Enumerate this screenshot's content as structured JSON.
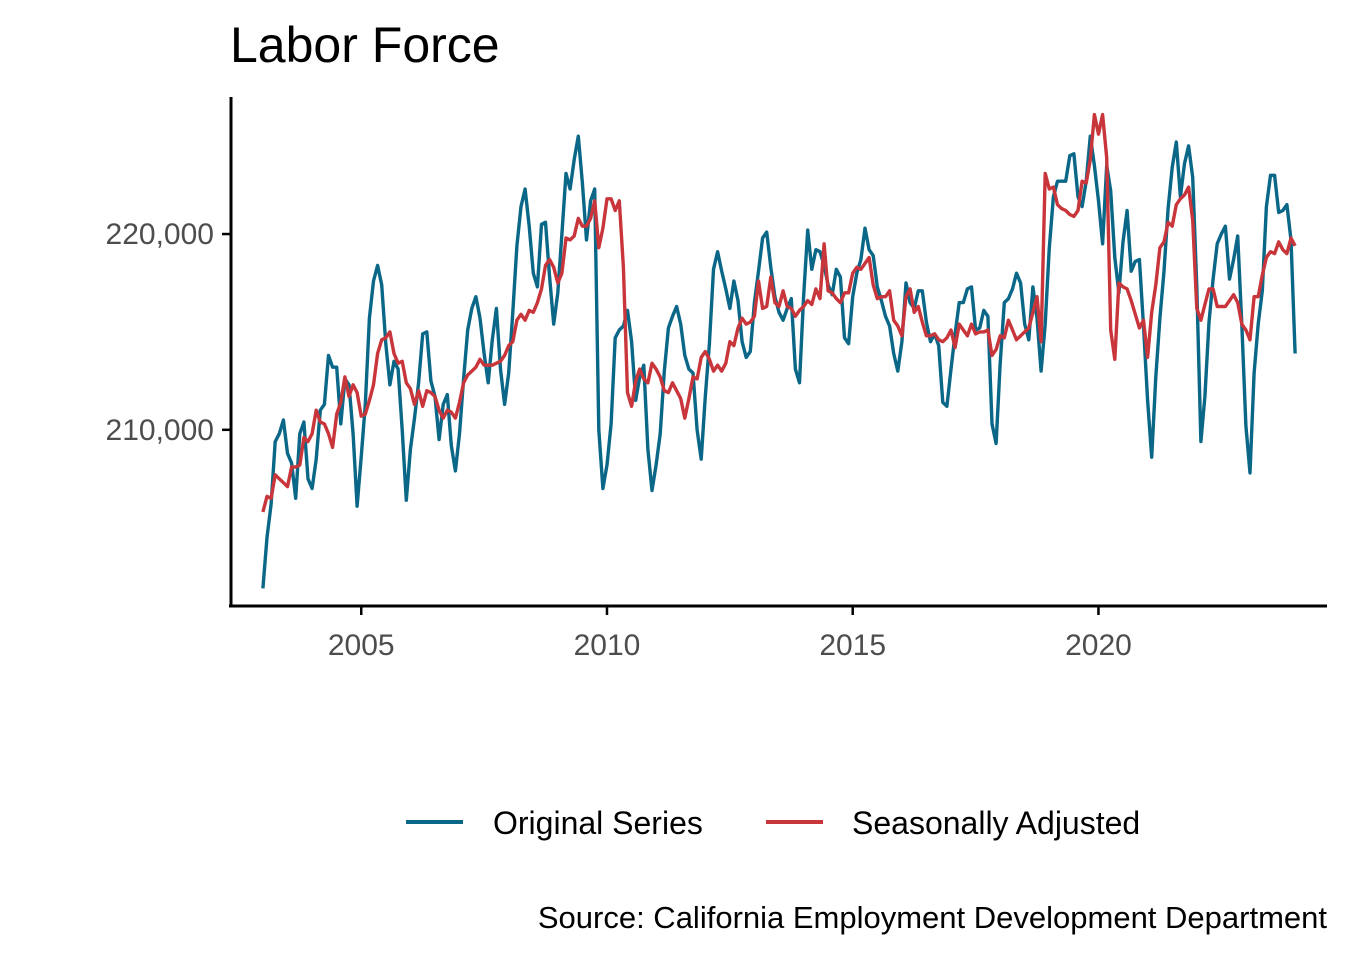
{
  "chart_data": {
    "type": "line",
    "title": "Labor Force",
    "xlabel": "",
    "ylabel": "",
    "caption": "Source: California Employment Development Department",
    "x_range": [
      2003.0,
      2024.0
    ],
    "xlim": [
      2002.35,
      2024.65
    ],
    "ylim": [
      201000,
      227000
    ],
    "x_ticks": [
      2005,
      2010,
      2015,
      2020
    ],
    "x_tick_labels": [
      "2005",
      "2010",
      "2015",
      "2020"
    ],
    "y_ticks": [
      210000,
      220000
    ],
    "y_tick_labels": [
      "210,000",
      "220,000"
    ],
    "grid": false,
    "legend_position": "bottom",
    "series": [
      {
        "name": "Original Series",
        "color": "#0a6787",
        "values": [
          201900,
          204500,
          206200,
          209400,
          209800,
          210500,
          208800,
          208300,
          206500,
          209800,
          210400,
          207500,
          207000,
          208500,
          211000,
          211300,
          213800,
          213200,
          213200,
          210300,
          212600,
          212300,
          209800,
          206100,
          208600,
          211300,
          215700,
          217600,
          218400,
          217400,
          214400,
          212300,
          213500,
          213100,
          210000,
          206400,
          209000,
          210600,
          212400,
          214900,
          215000,
          212500,
          211700,
          209500,
          211300,
          211800,
          209200,
          207900,
          209800,
          212600,
          215100,
          216200,
          216800,
          215700,
          213900,
          212400,
          214600,
          216200,
          213100,
          211300,
          212900,
          216000,
          219400,
          221400,
          222300,
          220400,
          218000,
          217300,
          220500,
          220600,
          217800,
          215400,
          217000,
          220000,
          223100,
          222300,
          223800,
          225000,
          222600,
          219700,
          221700,
          222300,
          210000,
          207000,
          208200,
          210300,
          214700,
          215100,
          215300,
          216100,
          214500,
          211500,
          212700,
          213300,
          209000,
          206900,
          208200,
          209800,
          213000,
          215200,
          215800,
          216300,
          215400,
          213800,
          213100,
          212900,
          210000,
          208500,
          211700,
          214400,
          218200,
          219100,
          218100,
          217200,
          216200,
          217600,
          216600,
          214500,
          213700,
          214000,
          216500,
          218100,
          219800,
          220100,
          218300,
          216800,
          216000,
          215600,
          216200,
          216700,
          213100,
          212400,
          216800,
          220200,
          218200,
          219200,
          219100,
          218400,
          217400,
          216900,
          218200,
          217800,
          214700,
          214400,
          216800,
          218000,
          218700,
          220300,
          219200,
          218900,
          217300,
          216600,
          215800,
          215300,
          213900,
          213000,
          214500,
          217500,
          216500,
          216200,
          217100,
          217100,
          215500,
          214500,
          214900,
          214300,
          211400,
          211200,
          213100,
          214900,
          216500,
          216500,
          217200,
          217300,
          215100,
          215200,
          216100,
          215800,
          210300,
          209300,
          213400,
          216500,
          216700,
          217200,
          218000,
          217500,
          215400,
          214600,
          217300,
          215700,
          213000,
          215400,
          219300,
          221900,
          222700,
          222700,
          222700,
          224000,
          224100,
          221900,
          221400,
          222700,
          225000,
          223500,
          221700,
          219500,
          223500,
          222200,
          218800,
          217000,
          219600,
          221200,
          218100,
          218600,
          218700,
          215300,
          211500,
          208600,
          212700,
          215700,
          218100,
          221300,
          223400,
          224700,
          221900,
          223600,
          224500,
          222900,
          217300,
          209400,
          211700,
          215500,
          217700,
          219500,
          220000,
          220400,
          217700,
          218700,
          219900,
          215400,
          210200,
          207800,
          212900,
          215400,
          217100,
          221400,
          223000,
          223000,
          221100,
          221200,
          221500,
          219700,
          213900
        ]
      },
      {
        "name": "Seasonally Adjusted",
        "color": "#c8353a",
        "values": [
          205800,
          206600,
          206500,
          207700,
          207500,
          207300,
          207100,
          208100,
          208100,
          208200,
          209600,
          209400,
          209800,
          211000,
          210400,
          210300,
          209800,
          209100,
          210800,
          211400,
          212700,
          211700,
          212300,
          211900,
          210700,
          210800,
          211500,
          212300,
          213900,
          214600,
          214700,
          215000,
          213900,
          213400,
          213500,
          212400,
          212100,
          211300,
          212000,
          211200,
          212000,
          211900,
          211700,
          211000,
          210600,
          211000,
          210900,
          210600,
          211400,
          212400,
          212800,
          213000,
          213200,
          213600,
          213300,
          213300,
          213300,
          213400,
          213500,
          213800,
          214300,
          214500,
          215600,
          215900,
          215600,
          216100,
          216000,
          216500,
          217200,
          218400,
          218700,
          218300,
          217500,
          218000,
          219800,
          219700,
          219900,
          220800,
          220400,
          220400,
          220800,
          221700,
          219300,
          220300,
          221800,
          221800,
          221200,
          221700,
          218300,
          211900,
          211200,
          212500,
          213100,
          212600,
          212400,
          213400,
          213100,
          212700,
          212000,
          211900,
          212400,
          212000,
          211600,
          210600,
          211600,
          212700,
          212600,
          213700,
          214000,
          213600,
          213000,
          213300,
          213000,
          213400,
          214500,
          214300,
          215200,
          215700,
          215400,
          215500,
          215800,
          217600,
          216200,
          216300,
          217800,
          216500,
          216300,
          217100,
          216300,
          216200,
          215800,
          216100,
          216300,
          216600,
          216400,
          217200,
          216700,
          219500,
          217100,
          217000,
          216700,
          216500,
          217000,
          217000,
          218000,
          218300,
          218200,
          218500,
          218800,
          217400,
          216700,
          216800,
          216800,
          217100,
          215600,
          215300,
          214800,
          216800,
          217200,
          216000,
          216300,
          215500,
          214800,
          214800,
          214900,
          214600,
          214500,
          214700,
          215100,
          214200,
          215400,
          215100,
          214800,
          215400,
          214900,
          215000,
          215000,
          215100,
          213800,
          214100,
          214800,
          214700,
          215600,
          215100,
          214600,
          214800,
          215000,
          215200,
          216000,
          216800,
          214500,
          223100,
          222300,
          222400,
          221500,
          221300,
          221200,
          221000,
          220900,
          221200,
          222700,
          222600,
          223800,
          226100,
          225100,
          226100,
          223900,
          215100,
          213600,
          217500,
          217300,
          217200,
          216600,
          215900,
          215200,
          215600,
          213700,
          216000,
          217400,
          219300,
          219600,
          220600,
          220400,
          221500,
          221800,
          222000,
          222400,
          220700,
          216200,
          215600,
          216400,
          217200,
          217200,
          216300,
          216300,
          216300,
          216600,
          216900,
          216500,
          215400,
          215100,
          214600,
          216800,
          216800,
          217900,
          218800,
          219100,
          219000,
          219600,
          219200,
          219000,
          219800,
          219400
        ]
      }
    ]
  }
}
